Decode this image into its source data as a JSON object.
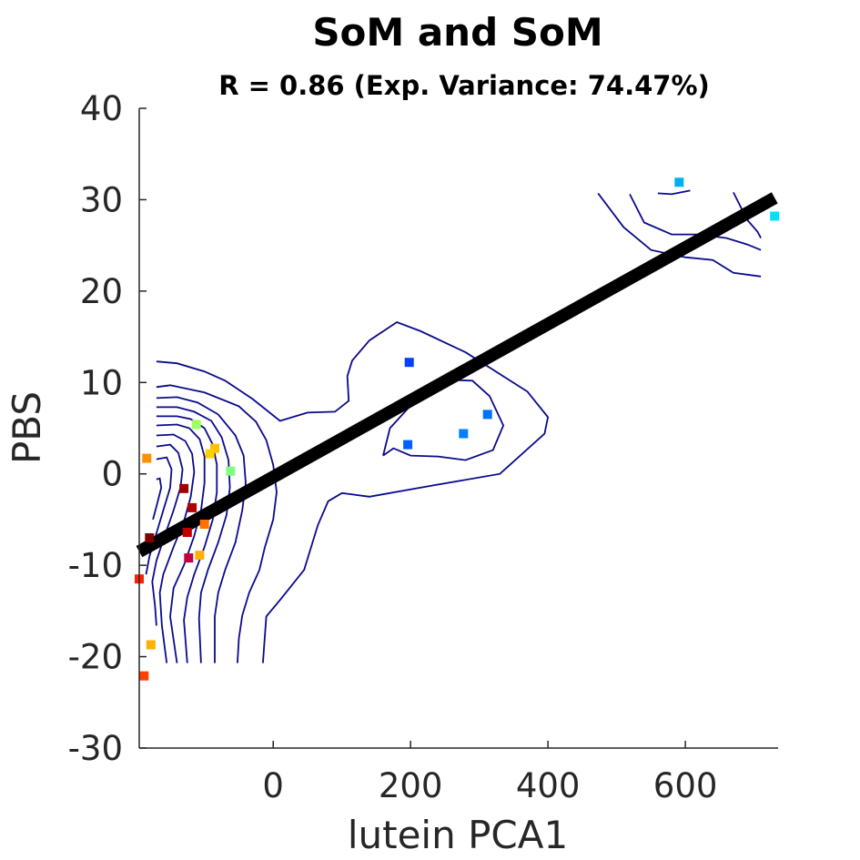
{
  "chart_data": {
    "type": "scatter",
    "title": "SoM and SoM",
    "subtitle": "R = 0.86 (Exp. Variance: 74.47%)",
    "xlabel": "lutein PCA1",
    "ylabel": "PBS",
    "xlim": [
      -195,
      735
    ],
    "ylim": [
      -30,
      40
    ],
    "xticks": [
      0,
      200,
      400,
      600
    ],
    "xtick_labels": [
      "0",
      "200",
      "400",
      "600"
    ],
    "yticks": [
      40,
      30,
      20,
      10,
      0,
      -10,
      -20,
      -30
    ],
    "ytick_labels": [
      "40",
      "30",
      "20",
      "10",
      "0",
      "-10",
      "-20",
      "-30"
    ],
    "grid": false,
    "regression_line": {
      "x": [
        -195,
        730
      ],
      "y": [
        -8.5,
        30.2
      ],
      "color": "#000000"
    },
    "points": [
      {
        "x": 591,
        "y": 31.9,
        "color": "#00b0f0"
      },
      {
        "x": 730,
        "y": 28.2,
        "color": "#00e0f8"
      },
      {
        "x": 198,
        "y": 12.2,
        "color": "#0040ff"
      },
      {
        "x": 312,
        "y": 6.5,
        "color": "#0070ff"
      },
      {
        "x": 277,
        "y": 4.4,
        "color": "#0080ff"
      },
      {
        "x": 196,
        "y": 3.2,
        "color": "#0060ff"
      },
      {
        "x": -112,
        "y": 5.4,
        "color": "#a0ff60"
      },
      {
        "x": -85,
        "y": 2.8,
        "color": "#ffc000"
      },
      {
        "x": -92,
        "y": 2.2,
        "color": "#ffd000"
      },
      {
        "x": -62,
        "y": 0.3,
        "color": "#80ff80"
      },
      {
        "x": -184,
        "y": 1.7,
        "color": "#ff9000"
      },
      {
        "x": -130,
        "y": -1.6,
        "color": "#a00000"
      },
      {
        "x": -118,
        "y": -3.7,
        "color": "#b00000"
      },
      {
        "x": -100,
        "y": -5.5,
        "color": "#ff7000"
      },
      {
        "x": -125,
        "y": -6.4,
        "color": "#c00000"
      },
      {
        "x": -180,
        "y": -7.0,
        "color": "#800000"
      },
      {
        "x": -123,
        "y": -9.2,
        "color": "#c00040"
      },
      {
        "x": -107,
        "y": -8.9,
        "color": "#ffb000"
      },
      {
        "x": -195,
        "y": -11.5,
        "color": "#ff2000"
      },
      {
        "x": -178,
        "y": -18.7,
        "color": "#ffb000"
      },
      {
        "x": -188,
        "y": -22.1,
        "color": "#ff4000"
      }
    ],
    "contour_color": "#0a0a8c",
    "contours": [
      [
        [
          -170,
          12.3
        ],
        [
          -140,
          12.1
        ],
        [
          -100,
          11.2
        ],
        [
          -70,
          10.2
        ],
        [
          -30,
          8.2
        ],
        [
          10,
          5.8
        ],
        [
          50,
          6.7
        ],
        [
          90,
          6.8
        ],
        [
          110,
          8.0
        ],
        [
          108,
          10.7
        ],
        [
          115,
          12.4
        ],
        [
          140,
          14.6
        ],
        [
          180,
          16.6
        ],
        [
          215,
          15.6
        ],
        [
          280,
          13.3
        ],
        [
          370,
          9.0
        ],
        [
          400,
          6.2
        ],
        [
          395,
          4.4
        ],
        [
          330,
          0.0
        ],
        [
          230,
          -1.3
        ],
        [
          140,
          -2.5
        ],
        [
          100,
          -2.1
        ],
        [
          80,
          -3.0
        ],
        [
          65,
          -5.6
        ],
        [
          45,
          -10.5
        ],
        [
          10,
          -13.8
        ],
        [
          -10,
          -15.6
        ],
        [
          -15,
          -20.7
        ]
      ],
      [
        [
          -170,
          9.5
        ],
        [
          -150,
          9.7
        ],
        [
          -100,
          8.9
        ],
        [
          -50,
          7.4
        ],
        [
          -25,
          5.7
        ],
        [
          -10,
          3.7
        ],
        [
          0,
          1.0
        ],
        [
          5,
          -2.0
        ],
        [
          0,
          -5.0
        ],
        [
          -12,
          -8.0
        ],
        [
          -20,
          -10.5
        ],
        [
          -35,
          -13.0
        ],
        [
          -45,
          -15.5
        ],
        [
          -50,
          -18.0
        ],
        [
          -52,
          -20.7
        ]
      ],
      [
        [
          -170,
          8.3
        ],
        [
          -140,
          8.4
        ],
        [
          -110,
          7.8
        ],
        [
          -80,
          6.5
        ],
        [
          -55,
          4.2
        ],
        [
          -43,
          2.0
        ],
        [
          -40,
          -1.0
        ],
        [
          -45,
          -4.0
        ],
        [
          -55,
          -7.5
        ],
        [
          -70,
          -10.5
        ],
        [
          -80,
          -13.0
        ],
        [
          -85,
          -15.6
        ],
        [
          -85,
          -20.7
        ]
      ],
      [
        [
          -170,
          7.3
        ],
        [
          -140,
          7.3
        ],
        [
          -115,
          6.8
        ],
        [
          -90,
          5.8
        ],
        [
          -75,
          4.0
        ],
        [
          -65,
          1.5
        ],
        [
          -63,
          -1.5
        ],
        [
          -68,
          -4.5
        ],
        [
          -80,
          -7.5
        ],
        [
          -95,
          -10.5
        ],
        [
          -105,
          -13.0
        ],
        [
          -108,
          -15.8
        ],
        [
          -105,
          -20.7
        ]
      ],
      [
        [
          -170,
          6.3
        ],
        [
          -140,
          6.3
        ],
        [
          -120,
          6.0
        ],
        [
          -100,
          5.0
        ],
        [
          -88,
          3.2
        ],
        [
          -82,
          1.0
        ],
        [
          -82,
          -2.0
        ],
        [
          -88,
          -5.0
        ],
        [
          -100,
          -8.0
        ],
        [
          -115,
          -11.0
        ],
        [
          -125,
          -13.5
        ],
        [
          -130,
          -16.0
        ],
        [
          -125,
          -20.7
        ]
      ],
      [
        [
          -170,
          5.3
        ],
        [
          -140,
          5.4
        ],
        [
          -122,
          5.0
        ],
        [
          -107,
          3.8
        ],
        [
          -100,
          1.9
        ],
        [
          -100,
          -1.0
        ],
        [
          -105,
          -4.0
        ],
        [
          -115,
          -6.8
        ],
        [
          -130,
          -10.0
        ],
        [
          -145,
          -12.5
        ],
        [
          -150,
          -15.6
        ],
        [
          -140,
          -20.7
        ]
      ],
      [
        [
          -170,
          4.2
        ],
        [
          -145,
          4.3
        ],
        [
          -128,
          3.6
        ],
        [
          -118,
          2.2
        ],
        [
          -115,
          0.2
        ],
        [
          -120,
          -2.5
        ],
        [
          -130,
          -5.2
        ],
        [
          -145,
          -8.0
        ],
        [
          -160,
          -11.0
        ],
        [
          -165,
          -13.0
        ],
        [
          -162,
          -16.6
        ],
        [
          -155,
          -20.7
        ]
      ],
      [
        [
          -170,
          3.0
        ],
        [
          -150,
          3.2
        ],
        [
          -138,
          2.3
        ],
        [
          -132,
          0.5
        ],
        [
          -135,
          -1.5
        ],
        [
          -145,
          -4.0
        ],
        [
          -158,
          -6.8
        ],
        [
          -170,
          -9.5
        ],
        [
          -176,
          -11.8
        ],
        [
          -172,
          -14.5
        ],
        [
          -170,
          -16.6
        ]
      ],
      [
        [
          -170,
          1.6
        ],
        [
          -155,
          1.8
        ],
        [
          -148,
          0.5
        ],
        [
          -150,
          -1.5
        ],
        [
          -160,
          -4.0
        ],
        [
          -170,
          -6.5
        ],
        [
          -180,
          -9.0
        ],
        [
          -185,
          -11.0
        ]
      ],
      [
        [
          -170,
          -0.6
        ],
        [
          -165,
          -0.5
        ],
        [
          -163,
          -1.5
        ],
        [
          -168,
          -3.0
        ],
        [
          -175,
          -5.0
        ]
      ],
      [
        [
          160,
          2.0
        ],
        [
          170,
          5.0
        ],
        [
          210,
          8.3
        ],
        [
          250,
          10.3
        ],
        [
          290,
          10.2
        ],
        [
          315,
          8.5
        ],
        [
          335,
          5.3
        ],
        [
          320,
          2.6
        ],
        [
          280,
          1.5
        ],
        [
          240,
          1.9
        ],
        [
          200,
          2.0
        ],
        [
          175,
          2.8
        ],
        [
          160,
          2.0
        ]
      ],
      [
        [
          473,
          30.7
        ],
        [
          510,
          27.0
        ],
        [
          550,
          24.5
        ],
        [
          600,
          23.7
        ],
        [
          640,
          23.4
        ],
        [
          670,
          22.0
        ],
        [
          710,
          21.6
        ]
      ],
      [
        [
          519,
          30.6
        ],
        [
          540,
          27.5
        ],
        [
          580,
          26.2
        ],
        [
          620,
          26.2
        ],
        [
          660,
          25.8
        ],
        [
          690,
          25.1
        ],
        [
          710,
          24.5
        ]
      ],
      [
        [
          560,
          30.7
        ],
        [
          580,
          30.6
        ],
        [
          607,
          31.0
        ]
      ],
      [
        [
          670,
          30.8
        ],
        [
          690,
          27.8
        ],
        [
          705,
          26.5
        ],
        [
          710,
          25.8
        ]
      ]
    ]
  }
}
